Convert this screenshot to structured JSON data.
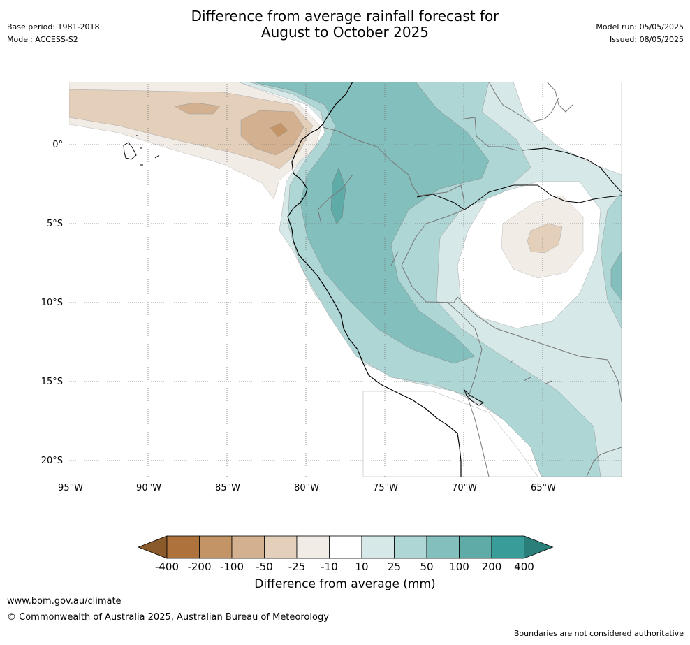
{
  "title": {
    "line1": "Difference from average rainfall forecast for",
    "line2": "August to October 2025"
  },
  "meta_left": {
    "base_period": "Base period: 1981-2018",
    "model": "Model: ACCESS-S2"
  },
  "meta_right": {
    "model_run": "Model run: 05/05/2025",
    "issued": "Issued: 08/05/2025"
  },
  "map": {
    "lat_labels": [
      "0°",
      "5°S",
      "10°S",
      "15°S",
      "20°S"
    ],
    "lon_labels": [
      "95°W",
      "90°W",
      "85°W",
      "80°W",
      "75°W",
      "70°W",
      "65°W"
    ]
  },
  "colorbar": {
    "label": "Difference from average (mm)",
    "ticks": [
      "-400",
      "-200",
      "-100",
      "-50",
      "-25",
      "-10",
      "10",
      "25",
      "50",
      "100",
      "200",
      "400"
    ],
    "colors": [
      "#8b5a2b",
      "#ae733c",
      "#c29466",
      "#d3b190",
      "#e3cfba",
      "#f2ece6",
      "#ffffff",
      "#d6e8e7",
      "#aed6d4",
      "#83bfbd",
      "#5eaba8",
      "#389c98",
      "#2a7f7b"
    ]
  },
  "footer": {
    "url": "www.bom.gov.au/climate",
    "copyright": "© Commonwealth of Australia 2025, Australian Bureau of Meteorology",
    "boundaries": "Boundaries are not considered authoritative"
  }
}
